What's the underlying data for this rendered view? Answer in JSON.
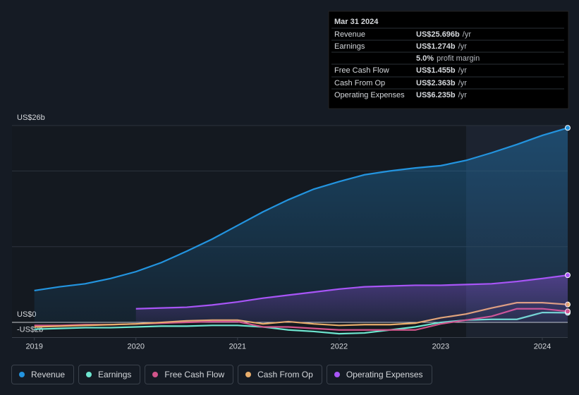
{
  "chart_data": {
    "type": "line",
    "x": [
      2019,
      2019.25,
      2019.5,
      2019.75,
      2020,
      2020.25,
      2020.5,
      2020.75,
      2021,
      2021.25,
      2021.5,
      2021.75,
      2022,
      2022.25,
      2022.5,
      2022.75,
      2023,
      2023.25,
      2023.5,
      2023.75,
      2024,
      2024.25
    ],
    "xlim": [
      2018.78,
      2024.25
    ],
    "xticks": [
      2019,
      2020,
      2021,
      2022,
      2023,
      2024
    ],
    "ylim": [
      -2,
      26
    ],
    "yticks": [
      {
        "value": -2,
        "label": "-US$2b"
      },
      {
        "value": 0,
        "label": "US$0"
      },
      {
        "value": 10,
        "label": null
      },
      {
        "value": 20,
        "label": null
      },
      {
        "value": 26,
        "label": "US$26b"
      }
    ],
    "grid": true,
    "series": [
      {
        "name": "Revenue",
        "color": "#2394df",
        "area": true,
        "values": [
          4.2,
          4.7,
          5.1,
          5.8,
          6.7,
          7.9,
          9.4,
          11.0,
          12.8,
          14.6,
          16.2,
          17.6,
          18.6,
          19.5,
          20.0,
          20.4,
          20.7,
          21.4,
          22.4,
          23.5,
          24.7,
          25.696
        ]
      },
      {
        "name": "Earnings",
        "color": "#6ee6d0",
        "values": [
          -0.9,
          -0.8,
          -0.7,
          -0.7,
          -0.6,
          -0.5,
          -0.5,
          -0.4,
          -0.4,
          -0.6,
          -1.0,
          -1.2,
          -1.5,
          -1.4,
          -1.0,
          -0.6,
          0.0,
          0.3,
          0.4,
          0.4,
          1.3,
          1.274
        ]
      },
      {
        "name": "Free Cash Flow",
        "color": "#d1558b",
        "values": [
          -0.4,
          -0.4,
          -0.3,
          -0.3,
          -0.2,
          -0.1,
          0.0,
          0.1,
          0.1,
          -0.6,
          -0.6,
          -0.8,
          -1.0,
          -1.0,
          -1.0,
          -1.0,
          -0.2,
          0.3,
          0.8,
          1.8,
          1.8,
          1.455
        ]
      },
      {
        "name": "Cash From Op",
        "color": "#e8ad6b",
        "values": [
          -0.6,
          -0.5,
          -0.4,
          -0.3,
          -0.2,
          0.0,
          0.2,
          0.3,
          0.3,
          -0.2,
          0.1,
          -0.2,
          -0.4,
          -0.3,
          -0.3,
          -0.1,
          0.6,
          1.1,
          1.9,
          2.6,
          2.6,
          2.363
        ]
      },
      {
        "name": "Operating Expenses",
        "color": "#a855f7",
        "area": true,
        "values": [
          null,
          null,
          null,
          null,
          1.8,
          1.9,
          2.0,
          2.3,
          2.7,
          3.2,
          3.6,
          4.0,
          4.4,
          4.7,
          4.8,
          4.9,
          4.9,
          5.0,
          5.1,
          5.4,
          5.8,
          6.235
        ]
      }
    ]
  },
  "tooltip": {
    "date": "Mar 31 2024",
    "rows": [
      {
        "label": "Revenue",
        "value": "US$25.696b",
        "unit": "/yr"
      },
      {
        "label": "Earnings",
        "value": "US$1.274b",
        "unit": "/yr"
      },
      {
        "label": null,
        "value": "5.0%",
        "unit": "profit margin"
      },
      {
        "label": "Free Cash Flow",
        "value": "US$1.455b",
        "unit": "/yr"
      },
      {
        "label": "Cash From Op",
        "value": "US$2.363b",
        "unit": "/yr"
      },
      {
        "label": "Operating Expenses",
        "value": "US$6.235b",
        "unit": "/yr"
      }
    ]
  }
}
